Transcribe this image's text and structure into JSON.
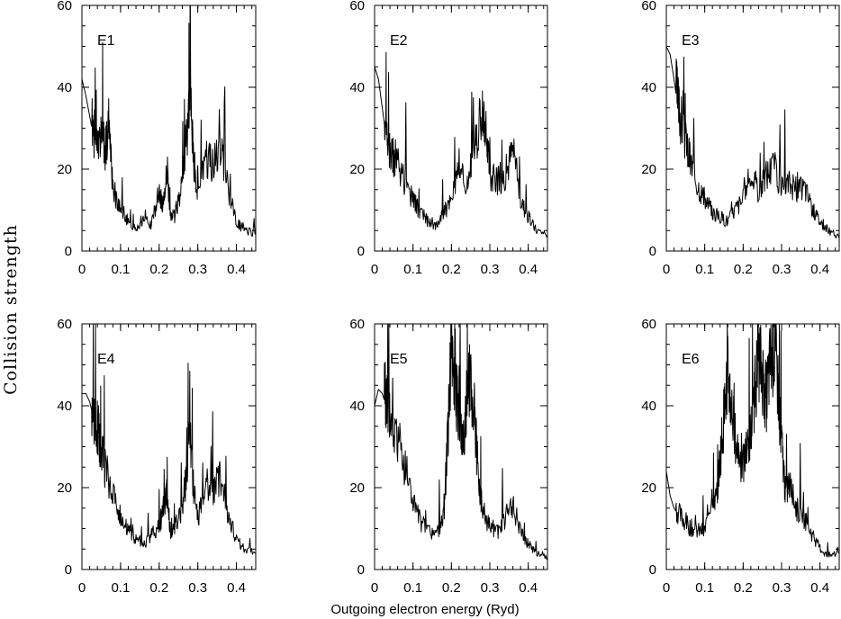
{
  "figure": {
    "ylabel": "Collision strength",
    "xlabel": "Outgoing electron energy (Ryd)"
  },
  "chart_data": [
    {
      "type": "line",
      "label": "E1",
      "xlim": [
        0,
        0.45
      ],
      "ylim": [
        0,
        60
      ],
      "xticks": [
        "0",
        "0.1",
        "0.2",
        "0.3",
        "0.4"
      ],
      "yticks": [
        "0",
        "20",
        "40",
        "60"
      ],
      "x": [
        0,
        0.01,
        0.02,
        0.03,
        0.04,
        0.05,
        0.06,
        0.07,
        0.08,
        0.1,
        0.12,
        0.14,
        0.16,
        0.18,
        0.2,
        0.21,
        0.22,
        0.23,
        0.24,
        0.26,
        0.275,
        0.28,
        0.29,
        0.3,
        0.32,
        0.34,
        0.36,
        0.38,
        0.4,
        0.42,
        0.45
      ],
      "y": [
        42,
        38,
        33,
        28,
        24,
        26,
        24,
        30,
        14,
        10,
        7,
        5,
        8,
        6,
        14,
        10,
        20,
        7,
        8,
        16,
        30,
        40,
        20,
        12,
        22,
        20,
        24,
        14,
        7,
        5,
        4
      ]
    },
    {
      "type": "line",
      "label": "E2",
      "xlim": [
        0,
        0.45
      ],
      "ylim": [
        0,
        60
      ],
      "xticks": [
        "0",
        "0.1",
        "0.2",
        "0.3",
        "0.4"
      ],
      "yticks": [
        "0",
        "20",
        "40",
        "60"
      ],
      "x": [
        0,
        0.01,
        0.02,
        0.03,
        0.04,
        0.05,
        0.06,
        0.08,
        0.1,
        0.12,
        0.14,
        0.16,
        0.18,
        0.2,
        0.22,
        0.24,
        0.26,
        0.28,
        0.29,
        0.3,
        0.32,
        0.34,
        0.36,
        0.38,
        0.4,
        0.42,
        0.45
      ],
      "y": [
        45,
        42,
        35,
        28,
        24,
        22,
        20,
        16,
        12,
        9,
        7,
        6,
        9,
        12,
        20,
        14,
        25,
        32,
        28,
        18,
        16,
        18,
        24,
        12,
        8,
        5,
        4
      ]
    },
    {
      "type": "line",
      "label": "E3",
      "xlim": [
        0,
        0.45
      ],
      "ylim": [
        0,
        60
      ],
      "xticks": [
        "0",
        "0.1",
        "0.2",
        "0.3",
        "0.4"
      ],
      "yticks": [
        "0",
        "20",
        "40",
        "60"
      ],
      "x": [
        0,
        0.01,
        0.02,
        0.03,
        0.04,
        0.05,
        0.06,
        0.08,
        0.1,
        0.12,
        0.14,
        0.16,
        0.18,
        0.2,
        0.22,
        0.24,
        0.26,
        0.28,
        0.3,
        0.32,
        0.34,
        0.36,
        0.38,
        0.4,
        0.42,
        0.45
      ],
      "y": [
        50,
        48,
        42,
        35,
        30,
        26,
        22,
        16,
        12,
        9,
        8,
        7,
        10,
        12,
        18,
        14,
        18,
        20,
        15,
        16,
        14,
        15,
        10,
        7,
        5,
        3
      ]
    },
    {
      "type": "line",
      "label": "E4",
      "xlim": [
        0,
        0.45
      ],
      "ylim": [
        0,
        60
      ],
      "xticks": [
        "0",
        "0.1",
        "0.2",
        "0.3",
        "0.4"
      ],
      "yticks": [
        "0",
        "20",
        "40",
        "60"
      ],
      "x": [
        0,
        0.01,
        0.02,
        0.03,
        0.04,
        0.05,
        0.06,
        0.08,
        0.1,
        0.12,
        0.14,
        0.16,
        0.18,
        0.2,
        0.21,
        0.22,
        0.23,
        0.24,
        0.26,
        0.27,
        0.28,
        0.29,
        0.3,
        0.32,
        0.34,
        0.36,
        0.38,
        0.4,
        0.42,
        0.45
      ],
      "y": [
        43,
        43,
        41,
        37,
        34,
        28,
        24,
        18,
        12,
        9,
        7,
        6,
        8,
        10,
        14,
        18,
        8,
        10,
        14,
        22,
        30,
        18,
        12,
        20,
        18,
        22,
        12,
        7,
        5,
        4
      ]
    },
    {
      "type": "line",
      "label": "E5",
      "xlim": [
        0,
        0.45
      ],
      "ylim": [
        0,
        60
      ],
      "xticks": [
        "0",
        "0.1",
        "0.2",
        "0.3",
        "0.4"
      ],
      "yticks": [
        "0",
        "20",
        "40",
        "60"
      ],
      "x": [
        0,
        0.01,
        0.02,
        0.03,
        0.04,
        0.06,
        0.08,
        0.1,
        0.12,
        0.14,
        0.16,
        0.18,
        0.19,
        0.2,
        0.21,
        0.22,
        0.23,
        0.24,
        0.25,
        0.26,
        0.27,
        0.28,
        0.3,
        0.32,
        0.34,
        0.36,
        0.38,
        0.4,
        0.42,
        0.45
      ],
      "y": [
        40,
        44,
        43,
        40,
        36,
        30,
        24,
        16,
        11,
        9,
        8,
        12,
        30,
        52,
        42,
        36,
        30,
        40,
        45,
        36,
        22,
        14,
        10,
        9,
        12,
        15,
        9,
        6,
        4,
        3
      ]
    },
    {
      "type": "line",
      "label": "E6",
      "xlim": [
        0,
        0.45
      ],
      "ylim": [
        0,
        60
      ],
      "xticks": [
        "0",
        "0.1",
        "0.2",
        "0.3",
        "0.4"
      ],
      "yticks": [
        "0",
        "20",
        "40",
        "60"
      ],
      "x": [
        0,
        0.01,
        0.02,
        0.04,
        0.06,
        0.08,
        0.1,
        0.12,
        0.13,
        0.14,
        0.15,
        0.16,
        0.17,
        0.18,
        0.2,
        0.21,
        0.22,
        0.23,
        0.24,
        0.25,
        0.26,
        0.27,
        0.28,
        0.29,
        0.3,
        0.31,
        0.32,
        0.34,
        0.36,
        0.38,
        0.4,
        0.42,
        0.45
      ],
      "y": [
        24,
        18,
        15,
        12,
        10,
        9,
        9,
        18,
        16,
        26,
        36,
        46,
        38,
        30,
        24,
        28,
        32,
        42,
        50,
        46,
        40,
        48,
        52,
        44,
        30,
        18,
        20,
        14,
        12,
        8,
        5,
        3,
        4
      ]
    }
  ]
}
